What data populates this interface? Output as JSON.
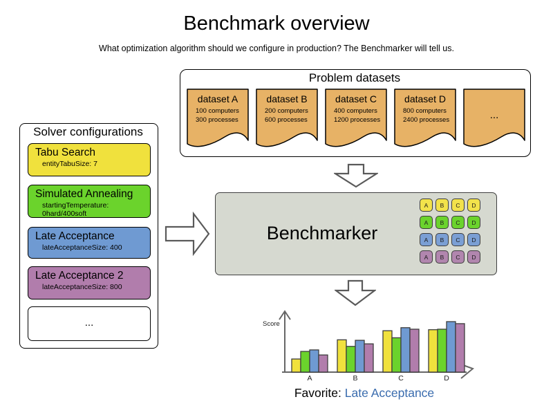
{
  "title": "Benchmark overview",
  "subtitle": "What optimization algorithm should we configure in production? The Benchmarker will tell us.",
  "datasets_panel": {
    "title": "Problem datasets",
    "card_color": "#e7b266",
    "cards": [
      {
        "name": "dataset A",
        "line1": "100 computers",
        "line2": "300 processes"
      },
      {
        "name": "dataset B",
        "line1": "200 computers",
        "line2": "600 processes"
      },
      {
        "name": "dataset C",
        "line1": "400 computers",
        "line2": "1200 processes"
      },
      {
        "name": "dataset D",
        "line1": "800 computers",
        "line2": "2400 processes"
      }
    ],
    "ellipsis": "..."
  },
  "solvers_panel": {
    "title": "Solver configurations",
    "cards": [
      {
        "name": "Tabu Search",
        "param": "entityTabuSize: 7",
        "color": "#f0e13d"
      },
      {
        "name": "Simulated Annealing",
        "param": "startingTemperature: 0hard/400soft",
        "color": "#6bd32c"
      },
      {
        "name": "Late Acceptance",
        "param": "lateAcceptanceSize: 400",
        "color": "#6f9ad2"
      },
      {
        "name": "Late Acceptance 2",
        "param": "lateAcceptanceSize: 800",
        "color": "#b17dac"
      }
    ],
    "ellipsis": "..."
  },
  "benchmarker": {
    "label": "Benchmarker",
    "background": "#d6d9d0",
    "chip_letters": [
      "A",
      "B",
      "C",
      "D"
    ],
    "chip_row_colors": [
      "#f2e24b",
      "#6bd32c",
      "#7b9fd4",
      "#b186ae"
    ]
  },
  "chart_data": {
    "type": "bar",
    "title": "",
    "xlabel": "",
    "ylabel": "Score",
    "categories": [
      "A",
      "B",
      "C",
      "D"
    ],
    "series": [
      {
        "name": "Tabu Search",
        "color": "#f0e13d",
        "values": [
          26,
          64,
          82,
          84
        ]
      },
      {
        "name": "Simulated Annealing",
        "color": "#6bd32c",
        "values": [
          41,
          51,
          68,
          85
        ]
      },
      {
        "name": "Late Acceptance",
        "color": "#6f9ad2",
        "values": [
          44,
          63,
          88,
          100
        ]
      },
      {
        "name": "Late Acceptance 2",
        "color": "#b17dac",
        "values": [
          34,
          56,
          85,
          96
        ]
      }
    ],
    "ylim": [
      0,
      100
    ],
    "grid": false,
    "legend": false
  },
  "favorite": {
    "label": "Favorite: ",
    "value": "Late Acceptance",
    "value_color": "#3a6cae"
  }
}
